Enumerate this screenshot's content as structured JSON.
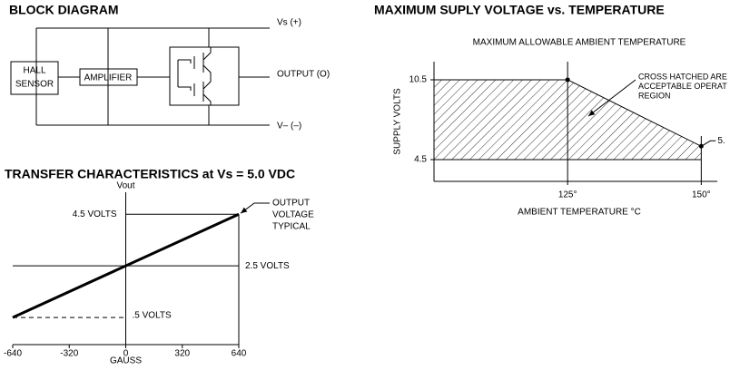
{
  "block_diagram": {
    "title": "BLOCK DIAGRAM",
    "supply_positive": "Vs (+)",
    "sensor": [
      "HALL",
      "SENSOR"
    ],
    "amplifier": "AMPLIFIER",
    "output": "OUTPUT (O)",
    "supply_negative": "V– (–)"
  },
  "chart_data": [
    {
      "type": "line",
      "title": "TRANSFER CHARACTERISTICS at Vs = 5.0 VDC",
      "y_label": "Vout",
      "x_label": "GAUSS",
      "x": [
        -640,
        640
      ],
      "values": [
        0.5,
        4.5
      ],
      "color": "#000000",
      "annotation": [
        "OUTPUT",
        "VOLTAGE",
        "TYPICAL"
      ],
      "xlim": [
        -640,
        640
      ],
      "xticks": [
        -640,
        -320,
        0,
        320,
        640
      ],
      "ylim": [
        -0.55,
        5.35
      ],
      "yticks": [
        {
          "value": 4.5,
          "label": "4.5 VOLTS"
        },
        {
          "value": 2.5,
          "label": "2.5 VOLTS"
        },
        {
          "value": 0.5,
          "label": ".5 VOLTS"
        }
      ]
    },
    {
      "type": "area",
      "title": "MAXIMUM SUPLY VOLTAGE vs. TEMPERATURE",
      "subtitle": "MAXIMUM ALLOWABLE AMBIENT TEMPERATURE",
      "y_label": "SUPPLY VOLTS",
      "x_label": "AMBIENT TEMPERATURE °C",
      "x": [
        100,
        125,
        150
      ],
      "values": [
        10.5,
        10.5,
        5.5
      ],
      "color": "#000000",
      "annotation": [
        "CROSS HATCHED ARE",
        "ACCEPTABLE OPERAT",
        "REGION"
      ],
      "point_label": "5.",
      "xlim": [
        100,
        153
      ],
      "xticks": [
        {
          "value": 125,
          "label": "125°"
        },
        {
          "value": 150,
          "label": "150°"
        }
      ],
      "ylim": [
        2.86,
        11.86
      ],
      "yticks": [
        4.5,
        10.5
      ]
    }
  ]
}
